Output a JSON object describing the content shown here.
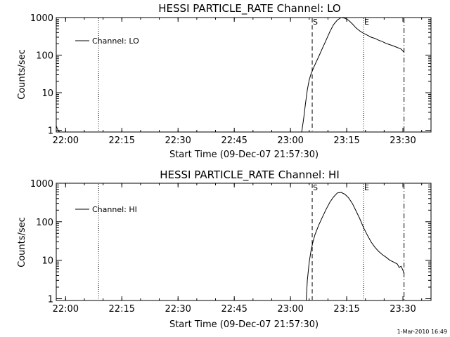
{
  "chart_data": [
    {
      "type": "line",
      "title": "HESSI PARTICLE_RATE Channel: LO",
      "xlabel": "Start Time (09-Dec-07 21:57:30)",
      "ylabel": "Counts/sec",
      "yscale": "log",
      "ylim": [
        0.9,
        1000
      ],
      "xlim_minutes": [
        0,
        100
      ],
      "x_tick_minutes": [
        2.5,
        17.5,
        32.5,
        47.5,
        62.5,
        77.5,
        92.5
      ],
      "x_tick_labels": [
        "22:00",
        "22:15",
        "22:30",
        "22:45",
        "23:00",
        "23:15",
        "23:30"
      ],
      "y_ticks": [
        1,
        10,
        100,
        1000
      ],
      "y_tick_labels": [
        "1",
        "10",
        "100",
        "1000"
      ],
      "legend": {
        "label": "Channel: LO",
        "placement": "top-left"
      },
      "markers": [
        {
          "minute": 11.3,
          "style": "dotted",
          "label": ""
        },
        {
          "minute": 68.3,
          "style": "dashed",
          "label": "S"
        },
        {
          "minute": 82.0,
          "style": "dotted",
          "label": "E"
        },
        {
          "minute": 92.8,
          "style": "dash-dot",
          "label": ""
        }
      ],
      "series": [
        {
          "name": "Channel: LO",
          "x": [
            0.0,
            0.3,
            0.6,
            1.0,
            65.5,
            66.0,
            66.5,
            67.0,
            67.5,
            68.0,
            68.5,
            69.0,
            70.0,
            71.0,
            72.0,
            73.0,
            74.0,
            75.0,
            76.0,
            77.0,
            78.0,
            79.0,
            80.0,
            81.0,
            82.0,
            83.0,
            84.0,
            85.0,
            86.0,
            87.0,
            88.0,
            89.0,
            90.0,
            91.0,
            92.0,
            92.8
          ],
          "y": [
            1.3,
            1.1,
            0.95,
            0.9,
            0.9,
            2.0,
            5.0,
            12,
            22,
            32,
            42,
            55,
            90,
            150,
            250,
            420,
            650,
            860,
            1000,
            960,
            850,
            680,
            530,
            440,
            380,
            340,
            300,
            280,
            250,
            230,
            205,
            190,
            175,
            160,
            145,
            120
          ]
        }
      ]
    },
    {
      "type": "line",
      "title": "HESSI PARTICLE_RATE Channel: HI",
      "xlabel": "Start Time (09-Dec-07 21:57:30)",
      "ylabel": "Counts/sec",
      "yscale": "log",
      "ylim": [
        0.9,
        1000
      ],
      "xlim_minutes": [
        0,
        100
      ],
      "x_tick_minutes": [
        2.5,
        17.5,
        32.5,
        47.5,
        62.5,
        77.5,
        92.5
      ],
      "x_tick_labels": [
        "22:00",
        "22:15",
        "22:30",
        "22:45",
        "23:00",
        "23:15",
        "23:30"
      ],
      "y_ticks": [
        1,
        10,
        100,
        1000
      ],
      "y_tick_labels": [
        "1",
        "10",
        "100",
        "1000"
      ],
      "legend": {
        "label": "Channel: HI",
        "placement": "top-left"
      },
      "markers": [
        {
          "minute": 11.3,
          "style": "dotted",
          "label": ""
        },
        {
          "minute": 68.3,
          "style": "dashed",
          "label": "S"
        },
        {
          "minute": 82.0,
          "style": "dotted",
          "label": "E"
        },
        {
          "minute": 92.8,
          "style": "dash-dot",
          "label": ""
        }
      ],
      "series": [
        {
          "name": "Channel: HI",
          "x": [
            66.7,
            67.0,
            67.5,
            68.0,
            68.5,
            69.0,
            70.0,
            71.0,
            72.0,
            73.0,
            74.0,
            75.0,
            76.0,
            77.0,
            78.0,
            79.0,
            80.0,
            81.0,
            82.0,
            83.0,
            84.0,
            85.0,
            86.0,
            87.0,
            88.0,
            89.0,
            90.0,
            91.0,
            91.5,
            92.0,
            92.5,
            92.8
          ],
          "y": [
            0.9,
            3.0,
            9.0,
            18,
            30,
            45,
            80,
            130,
            210,
            320,
            440,
            560,
            580,
            520,
            420,
            300,
            190,
            120,
            70,
            45,
            30,
            22,
            17,
            14,
            12,
            10,
            9,
            8,
            6.5,
            7,
            5.5,
            4.5
          ]
        }
      ]
    }
  ],
  "timestamp": "1-Mar-2010 16:49"
}
